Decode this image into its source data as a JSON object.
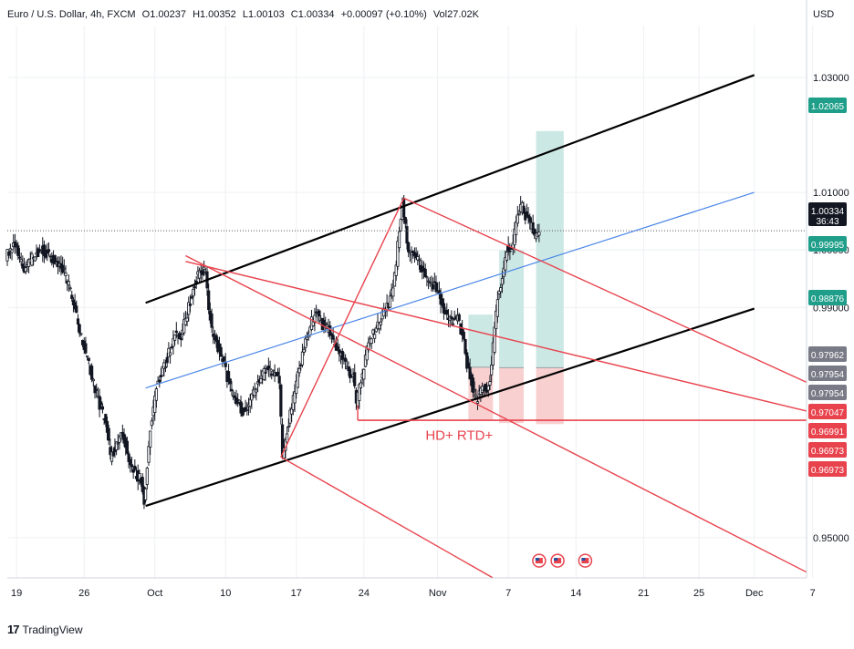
{
  "legend": {
    "symbol": "Euro / U.S. Dollar, 4h, FXCM",
    "open": "O1.00237",
    "high": "H1.00352",
    "low": "L1.00103",
    "close": "C1.00334",
    "change": "+0.00097 (+0.10%)",
    "volume": "Vol27.02K"
  },
  "currency": "USD",
  "brand": {
    "logo": "17",
    "name": "TradingView"
  },
  "annotation": "HD+ RTD+",
  "countdown": "36:43",
  "colors": {
    "channel": "#000000",
    "pitchfork": "#e8434d",
    "midline": "#4a86e8",
    "profit_zone": "#cce8e4",
    "loss_zone": "#f8d0d0",
    "candle": "#131722",
    "axis_text": "#131722",
    "grid": "#eef0f3"
  },
  "chart_data": {
    "type": "candlestick",
    "timeframe": "4h",
    "x_tick_labels": [
      "19",
      "26",
      "Oct",
      "10",
      "17",
      "24",
      "Nov",
      "7",
      "14",
      "21",
      "25",
      "Dec",
      "7"
    ],
    "y_tick_labels": [
      "1.03000",
      "1.01000",
      "1.00000",
      "0.99000",
      "0.95000"
    ],
    "ylim": [
      0.943,
      1.039
    ],
    "price_labels": [
      {
        "value": "1.02065",
        "style": "profit"
      },
      {
        "value": "1.00334",
        "style": "last"
      },
      {
        "value": "0.99995",
        "style": "profit"
      },
      {
        "value": "0.98876",
        "style": "profit"
      },
      {
        "value": "0.97962",
        "style": "neutral"
      },
      {
        "value": "0.97954",
        "style": "neutral"
      },
      {
        "value": "0.97954",
        "style": "neutral"
      },
      {
        "value": "0.97047",
        "style": "loss"
      },
      {
        "value": "0.96991",
        "style": "loss"
      },
      {
        "value": "0.96973",
        "style": "loss"
      },
      {
        "value": "0.96973",
        "style": "loss"
      }
    ],
    "price_path": [
      [
        0,
        0.999
      ],
      [
        3,
        1.001
      ],
      [
        6,
        0.996
      ],
      [
        9,
        0.999
      ],
      [
        12,
        1.0
      ],
      [
        15,
        0.9985
      ],
      [
        18,
        0.9975
      ],
      [
        21,
        0.993
      ],
      [
        24,
        0.986
      ],
      [
        27,
        0.98
      ],
      [
        30,
        0.974
      ],
      [
        33,
        0.969
      ],
      [
        34,
        0.964
      ],
      [
        36,
        0.966
      ],
      [
        38,
        0.968
      ],
      [
        40,
        0.964
      ],
      [
        42,
        0.961
      ],
      [
        44,
        0.96
      ],
      [
        45,
        0.956
      ],
      [
        47,
        0.969
      ],
      [
        49,
        0.976
      ],
      [
        51,
        0.979
      ],
      [
        53,
        0.982
      ],
      [
        55,
        0.986
      ],
      [
        57,
        0.985
      ],
      [
        59,
        0.989
      ],
      [
        61,
        0.993
      ],
      [
        63,
        0.997
      ],
      [
        65,
        0.996
      ],
      [
        66,
        0.99
      ],
      [
        67,
        0.986
      ],
      [
        69,
        0.983
      ],
      [
        71,
        0.98
      ],
      [
        73,
        0.976
      ],
      [
        75,
        0.974
      ],
      [
        77,
        0.972
      ],
      [
        79,
        0.973
      ],
      [
        81,
        0.976
      ],
      [
        83,
        0.978
      ],
      [
        85,
        0.979
      ],
      [
        87,
        0.979
      ],
      [
        89,
        0.977
      ],
      [
        90,
        0.964
      ],
      [
        92,
        0.97
      ],
      [
        95,
        0.978
      ],
      [
        97,
        0.983
      ],
      [
        99,
        0.987
      ],
      [
        101,
        0.989
      ],
      [
        103,
        0.987
      ],
      [
        105,
        0.986
      ],
      [
        107,
        0.983
      ],
      [
        109,
        0.982
      ],
      [
        111,
        0.979
      ],
      [
        113,
        0.978
      ],
      [
        114,
        0.973
      ],
      [
        115,
        0.976
      ],
      [
        116,
        0.978
      ],
      [
        118,
        0.984
      ],
      [
        120,
        0.986
      ],
      [
        122,
        0.988
      ],
      [
        124,
        0.99
      ],
      [
        126,
        0.993
      ],
      [
        127,
        0.998
      ],
      [
        128,
        1.004
      ],
      [
        129,
        1.008
      ],
      [
        130,
        1.004
      ],
      [
        131,
        1.0
      ],
      [
        133,
        0.999
      ],
      [
        135,
        0.997
      ],
      [
        137,
        0.995
      ],
      [
        139,
        0.994
      ],
      [
        141,
        0.992
      ],
      [
        143,
        0.989
      ],
      [
        145,
        0.988
      ],
      [
        147,
        0.988
      ],
      [
        149,
        0.984
      ],
      [
        150,
        0.98
      ],
      [
        152,
        0.976
      ],
      [
        153,
        0.974
      ],
      [
        155,
        0.976
      ],
      [
        157,
        0.976
      ],
      [
        158,
        0.98
      ],
      [
        160,
        0.992
      ],
      [
        162,
        0.996
      ],
      [
        163,
        1.0
      ],
      [
        165,
        1.001
      ],
      [
        166,
        1.005
      ],
      [
        168,
        1.008
      ],
      [
        169,
        1.006
      ],
      [
        171,
        1.004
      ],
      [
        172,
        1.002
      ],
      [
        173,
        1.0033
      ]
    ],
    "x_window": [
      0,
      260
    ],
    "x_tick_positions": [
      3,
      25,
      48,
      71,
      94,
      116,
      140,
      163,
      185,
      207,
      225,
      243,
      262
    ]
  }
}
